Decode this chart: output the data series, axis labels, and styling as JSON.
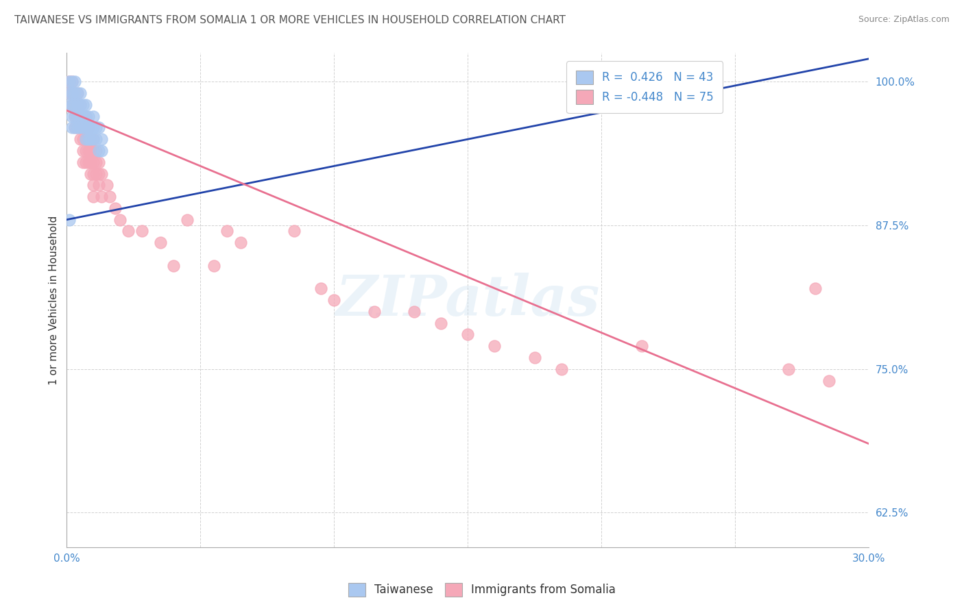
{
  "title": "TAIWANESE VS IMMIGRANTS FROM SOMALIA 1 OR MORE VEHICLES IN HOUSEHOLD CORRELATION CHART",
  "source": "Source: ZipAtlas.com",
  "ylabel": "1 or more Vehicles in Household",
  "xmin": 0.0,
  "xmax": 0.3,
  "ymin": 0.595,
  "ymax": 1.025,
  "x_ticks": [
    0.0,
    0.05,
    0.1,
    0.15,
    0.2,
    0.25,
    0.3
  ],
  "y_ticks": [
    0.625,
    0.75,
    0.875,
    1.0
  ],
  "y_tick_labels": [
    "62.5%",
    "75.0%",
    "87.5%",
    "100.0%"
  ],
  "R_taiwanese": 0.426,
  "N_taiwanese": 43,
  "R_somalia": -0.448,
  "N_somalia": 75,
  "taiwanese_color": "#aac8f0",
  "somalia_color": "#f5a8b8",
  "taiwanese_line_color": "#2244aa",
  "somalia_line_color": "#e87090",
  "background_color": "#ffffff",
  "grid_color": "#cccccc",
  "title_color": "#555555",
  "tick_color": "#4488cc",
  "tw_line_x0": 0.0,
  "tw_line_x1": 0.3,
  "tw_line_y0": 0.88,
  "tw_line_y1": 1.02,
  "so_line_x0": 0.0,
  "so_line_x1": 0.3,
  "so_line_y0": 0.975,
  "so_line_y1": 0.685,
  "taiwanese_scatter_x": [
    0.001,
    0.001,
    0.001,
    0.002,
    0.002,
    0.002,
    0.002,
    0.002,
    0.003,
    0.003,
    0.003,
    0.003,
    0.003,
    0.004,
    0.004,
    0.004,
    0.004,
    0.005,
    0.005,
    0.005,
    0.005,
    0.006,
    0.006,
    0.006,
    0.007,
    0.007,
    0.007,
    0.007,
    0.008,
    0.008,
    0.008,
    0.009,
    0.009,
    0.01,
    0.01,
    0.01,
    0.011,
    0.011,
    0.012,
    0.012,
    0.013,
    0.013,
    0.001
  ],
  "taiwanese_scatter_y": [
    1.0,
    0.99,
    0.98,
    1.0,
    0.99,
    0.98,
    0.97,
    0.96,
    1.0,
    0.99,
    0.98,
    0.97,
    0.96,
    0.99,
    0.98,
    0.97,
    0.96,
    0.99,
    0.98,
    0.97,
    0.96,
    0.98,
    0.97,
    0.96,
    0.98,
    0.97,
    0.96,
    0.95,
    0.97,
    0.96,
    0.95,
    0.96,
    0.95,
    0.97,
    0.96,
    0.95,
    0.96,
    0.95,
    0.96,
    0.94,
    0.95,
    0.94,
    0.88
  ],
  "somalia_scatter_x": [
    0.001,
    0.001,
    0.002,
    0.002,
    0.002,
    0.003,
    0.003,
    0.003,
    0.003,
    0.004,
    0.004,
    0.004,
    0.004,
    0.005,
    0.005,
    0.005,
    0.005,
    0.006,
    0.006,
    0.006,
    0.006,
    0.006,
    0.007,
    0.007,
    0.007,
    0.007,
    0.007,
    0.008,
    0.008,
    0.008,
    0.008,
    0.009,
    0.009,
    0.009,
    0.009,
    0.01,
    0.01,
    0.01,
    0.01,
    0.01,
    0.01,
    0.011,
    0.011,
    0.011,
    0.012,
    0.012,
    0.012,
    0.013,
    0.013,
    0.015,
    0.016,
    0.018,
    0.02,
    0.023,
    0.028,
    0.035,
    0.04,
    0.045,
    0.055,
    0.06,
    0.065,
    0.085,
    0.095,
    0.1,
    0.115,
    0.13,
    0.14,
    0.15,
    0.16,
    0.175,
    0.185,
    0.215,
    0.27,
    0.285,
    0.28
  ],
  "somalia_scatter_y": [
    1.0,
    0.99,
    1.0,
    0.99,
    0.98,
    0.99,
    0.98,
    0.97,
    0.96,
    0.99,
    0.98,
    0.97,
    0.96,
    0.98,
    0.97,
    0.96,
    0.95,
    0.97,
    0.96,
    0.95,
    0.94,
    0.93,
    0.97,
    0.96,
    0.95,
    0.94,
    0.93,
    0.96,
    0.95,
    0.94,
    0.93,
    0.95,
    0.94,
    0.93,
    0.92,
    0.95,
    0.94,
    0.93,
    0.92,
    0.91,
    0.9,
    0.94,
    0.93,
    0.92,
    0.93,
    0.92,
    0.91,
    0.92,
    0.9,
    0.91,
    0.9,
    0.89,
    0.88,
    0.87,
    0.87,
    0.86,
    0.84,
    0.88,
    0.84,
    0.87,
    0.86,
    0.87,
    0.82,
    0.81,
    0.8,
    0.8,
    0.79,
    0.78,
    0.77,
    0.76,
    0.75,
    0.77,
    0.75,
    0.74,
    0.82
  ]
}
